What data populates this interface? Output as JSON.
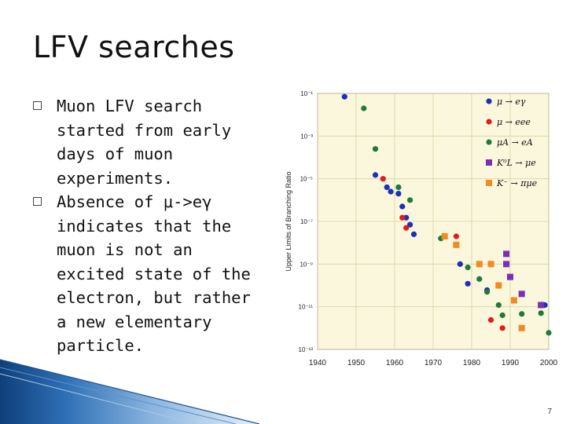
{
  "slide": {
    "title": "LFV searches",
    "bullets": [
      {
        "text": "Muon LFV search started from early days of muon experiments."
      },
      {
        "text": "Absence of μ->eγ indicates that the muon is not an excited state of the electron, but rather a new elementary particle."
      }
    ],
    "page_number": "7",
    "accent_color": "#2e6fb5"
  },
  "chart_data": {
    "type": "scatter",
    "title": "",
    "xlabel": "",
    "ylabel": "Upper Limits of Branching Ratio",
    "y_scale": "log",
    "xlim": [
      1940,
      2000
    ],
    "ylim": [
      1e-13,
      0.1
    ],
    "x_ticks": [
      "1940",
      "1950",
      "1960",
      "1970",
      "1980",
      "1990",
      "2000"
    ],
    "y_ticks": [
      "10⁻¹",
      "10⁻³",
      "10⁻⁵",
      "10⁻⁷",
      "10⁻⁹",
      "10⁻¹¹",
      "10⁻¹³"
    ],
    "grid": true,
    "legend_position": "top-right",
    "background_color": "#fbf7dc",
    "series": [
      {
        "name": "μ → eγ",
        "color": "#1e2fb8",
        "marker": "circle",
        "points": [
          [
            1947,
            0.07
          ],
          [
            1955,
            1.5e-05
          ],
          [
            1958,
            4e-06
          ],
          [
            1959,
            2.5e-06
          ],
          [
            1961,
            2e-06
          ],
          [
            1962,
            5e-07
          ],
          [
            1963,
            1.5e-07
          ],
          [
            1964,
            7e-08
          ],
          [
            1965,
            2.5e-08
          ],
          [
            1977,
            1e-09
          ],
          [
            1979,
            1.2e-10
          ],
          [
            1984,
            6e-11
          ],
          [
            1999,
            1.2e-11
          ]
        ]
      },
      {
        "name": "μ → eee",
        "color": "#e21b1b",
        "marker": "circle",
        "points": [
          [
            1957,
            1e-05
          ],
          [
            1962,
            1.5e-07
          ],
          [
            1963,
            5e-08
          ],
          [
            1976,
            2e-08
          ],
          [
            1985,
            2.4e-12
          ],
          [
            1988,
            1e-12
          ]
        ]
      },
      {
        "name": "μA → eA",
        "color": "#1e7a3c",
        "marker": "circle",
        "points": [
          [
            1952,
            0.02
          ],
          [
            1955,
            0.00025
          ],
          [
            1961,
            4e-06
          ],
          [
            1964,
            1e-06
          ],
          [
            1972,
            1.6e-08
          ],
          [
            1979,
            7e-10
          ],
          [
            1982,
            2e-10
          ],
          [
            1984,
            5e-11
          ],
          [
            1987,
            1.2e-11
          ],
          [
            1988,
            4e-12
          ],
          [
            1993,
            4.6e-12
          ],
          [
            1998,
            5e-12
          ],
          [
            2000,
            6e-13
          ]
        ]
      },
      {
        "name": "K⁰L → μe",
        "color": "#7a2fb5",
        "marker": "square",
        "points": [
          [
            1989,
            3e-09
          ],
          [
            1989,
            1e-09
          ],
          [
            1990,
            2.5e-10
          ],
          [
            1993,
            4e-11
          ],
          [
            1998,
            1.2e-11
          ]
        ]
      },
      {
        "name": "K⁻ → πμe",
        "color": "#f28a1e",
        "marker": "square",
        "points": [
          [
            1973,
            2e-08
          ],
          [
            1976,
            8e-09
          ],
          [
            1982,
            1e-09
          ],
          [
            1985,
            1e-09
          ],
          [
            1987,
            1e-10
          ],
          [
            1991,
            2e-11
          ],
          [
            1993,
            1e-12
          ]
        ]
      }
    ]
  }
}
